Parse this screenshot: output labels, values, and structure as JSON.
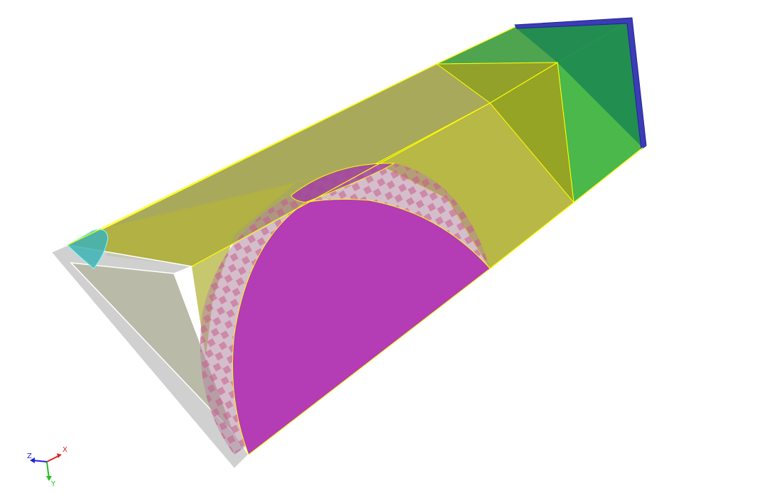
{
  "viewport": {
    "background": "#ffffff",
    "view_mode": "3d-shaded-translucent"
  },
  "model": {
    "parts": [
      {
        "name": "end-cap-left",
        "color": "#c8c8c8"
      },
      {
        "name": "quarter-block-yellow",
        "color": "#b4b43c"
      },
      {
        "name": "curved-surface-magenta",
        "color": "#b43cb4"
      },
      {
        "name": "tapered-block-green",
        "color": "#40b440"
      },
      {
        "name": "end-face-blue",
        "color": "#3c3cb4"
      },
      {
        "name": "small-fillet-cyan",
        "color": "#40b4b4"
      }
    ],
    "edge_color": "#ffff00"
  },
  "triad": {
    "x_label": "X",
    "y_label": "Y",
    "z_label": "Z",
    "x_color": "#e02020",
    "y_color": "#20c020",
    "z_color": "#2020e0"
  }
}
